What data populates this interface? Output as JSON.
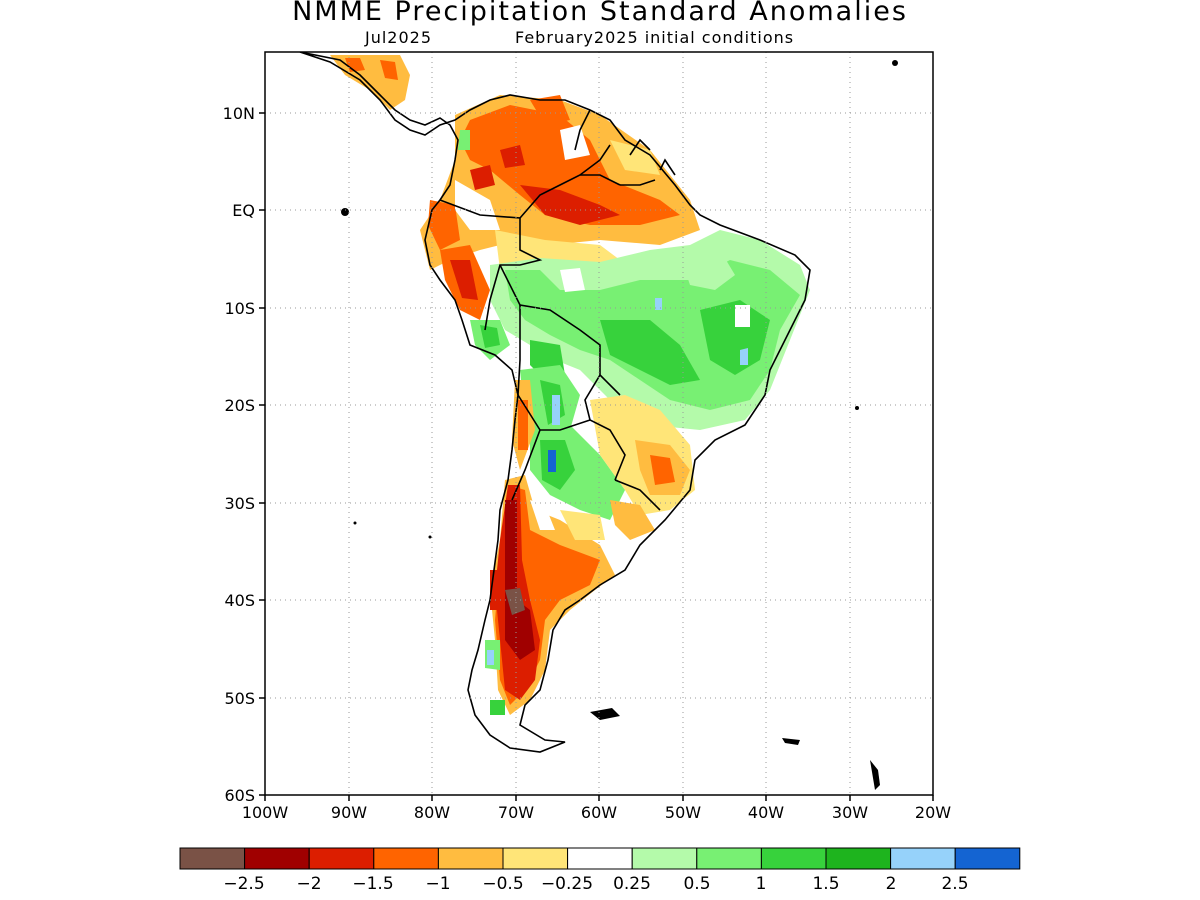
{
  "title": "NMME Precipitation Standard Anomalies",
  "subtitle_left": "Jul2025",
  "subtitle_right": "February2025 initial conditions",
  "map": {
    "lon_range": [
      -100,
      -20
    ],
    "lat_range": [
      -60,
      16
    ],
    "lat_labels": [
      "10N",
      "EQ",
      "10S",
      "20S",
      "30S",
      "40S",
      "50S",
      "60S"
    ],
    "lat_values": [
      10,
      0,
      -10,
      -20,
      -30,
      -40,
      -50,
      -60
    ],
    "lon_labels": [
      "100W",
      "90W",
      "80W",
      "70W",
      "60W",
      "50W",
      "40W",
      "30W",
      "20W"
    ],
    "lon_values": [
      -100,
      -90,
      -80,
      -70,
      -60,
      -50,
      -40,
      -30,
      -20
    ],
    "grid": "dotted"
  },
  "colorbar": {
    "colors": [
      "#7a5246",
      "#a00000",
      "#dc1e00",
      "#ff6400",
      "#ffbc40",
      "#ffe578",
      "#ffffff",
      "#b4faaa",
      "#78f073",
      "#37d23c",
      "#1eb41e",
      "#96d2fa",
      "#1464d2"
    ],
    "labels": [
      "−2.5",
      "−2",
      "−1.5",
      "−1",
      "−0.5",
      "−0.25",
      "0.25",
      "0.5",
      "1",
      "1.5",
      "2",
      "2.5"
    ]
  }
}
